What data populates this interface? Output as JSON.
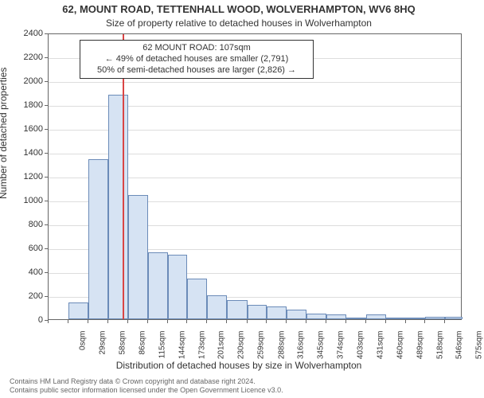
{
  "title": "62, MOUNT ROAD, TETTENHALL WOOD, WOLVERHAMPTON, WV6 8HQ",
  "subtitle": "Size of property relative to detached houses in Wolverhampton",
  "ylabel": "Number of detached properties",
  "xlabel": "Distribution of detached houses by size in Wolverhampton",
  "footer_line1": "Contains HM Land Registry data © Crown copyright and database right 2024.",
  "footer_line2": "Contains public sector information licensed under the Open Government Licence v3.0.",
  "annotation": {
    "line1": "62 MOUNT ROAD: 107sqm",
    "line2": "← 49% of detached houses are smaller (2,791)",
    "line3": "50% of semi-detached houses are larger (2,826) →"
  },
  "chart": {
    "type": "histogram",
    "bar_fill": "#d6e3f3",
    "bar_stroke": "#6b8bb8",
    "grid_color": "#dddddd",
    "axis_color": "#666666",
    "marker_color": "#d94545",
    "marker_value_sqm": 107,
    "background_color": "#ffffff",
    "title_fontsize": 13,
    "subtitle_fontsize": 12,
    "label_fontsize": 12,
    "tick_fontsize": 11,
    "xtick_fontsize": 10,
    "ylim": [
      0,
      2400
    ],
    "ytick_step": 200,
    "xlim_sqm": [
      0,
      600
    ],
    "bins_sqm_start": [
      0,
      29,
      58,
      86,
      115,
      144,
      173,
      201,
      230,
      259,
      288,
      316,
      345,
      374,
      403,
      431,
      460,
      489,
      518,
      546,
      575
    ],
    "xtick_labels": [
      "0sqm",
      "29sqm",
      "58sqm",
      "86sqm",
      "115sqm",
      "144sqm",
      "173sqm",
      "201sqm",
      "230sqm",
      "259sqm",
      "288sqm",
      "316sqm",
      "345sqm",
      "374sqm",
      "403sqm",
      "431sqm",
      "460sqm",
      "489sqm",
      "518sqm",
      "546sqm",
      "575sqm"
    ],
    "values": [
      0,
      140,
      1340,
      1880,
      1040,
      560,
      540,
      340,
      200,
      160,
      120,
      110,
      80,
      50,
      40,
      15,
      40,
      5,
      5,
      20,
      20
    ]
  }
}
